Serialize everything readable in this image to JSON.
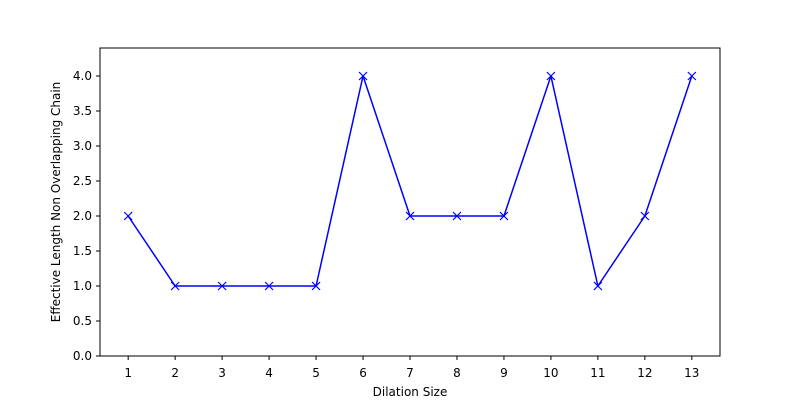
{
  "chart_data": {
    "type": "line",
    "title": "",
    "xlabel": "Dilation Size",
    "ylabel": "Effective Length Non Overlapping Chain",
    "x": [
      1,
      2,
      3,
      4,
      5,
      6,
      7,
      8,
      9,
      10,
      11,
      12,
      13
    ],
    "series": [
      {
        "values": [
          2.0,
          1.0,
          1.0,
          1.0,
          1.0,
          4.0,
          2.0,
          2.0,
          2.0,
          4.0,
          1.0,
          2.0,
          4.0
        ],
        "color": "#0000ff",
        "marker": "x"
      }
    ],
    "xticks": [
      "1",
      "2",
      "3",
      "4",
      "5",
      "6",
      "7",
      "8",
      "9",
      "10",
      "11",
      "12",
      "13"
    ],
    "yticks": [
      "0.0",
      "0.5",
      "1.0",
      "1.5",
      "2.0",
      "2.5",
      "3.0",
      "3.5",
      "4.0"
    ],
    "xlim": [
      0.4,
      13.6
    ],
    "ylim": [
      0.0,
      4.4
    ],
    "grid": false,
    "legend": "none"
  }
}
